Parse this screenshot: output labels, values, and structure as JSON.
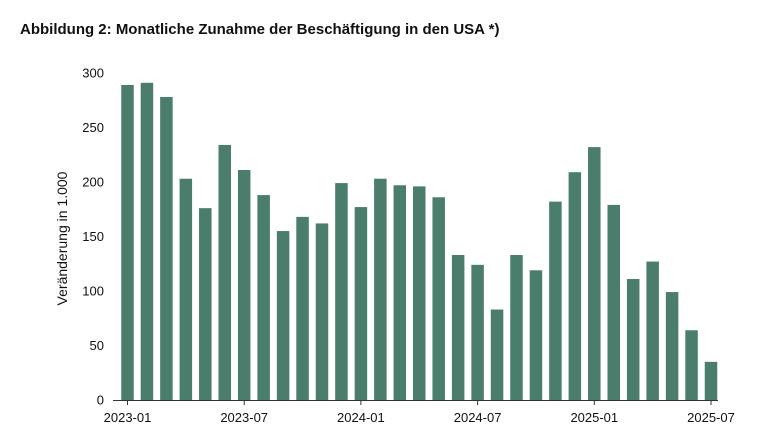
{
  "chart_data": {
    "type": "bar",
    "title": "Abbildung 2: Monatliche Zunahme der Beschäftigung in den USA *)",
    "xlabel": "",
    "ylabel": "Veränderung in 1.000",
    "ylim": [
      0,
      300
    ],
    "yticks": [
      0,
      50,
      100,
      150,
      200,
      250,
      300
    ],
    "grid": false,
    "legend": "none",
    "bar_color": "#4a7d6b",
    "categories": [
      "2023-01",
      "2023-02",
      "2023-03",
      "2023-04",
      "2023-05",
      "2023-06",
      "2023-07",
      "2023-08",
      "2023-09",
      "2023-10",
      "2023-11",
      "2023-12",
      "2024-01",
      "2024-02",
      "2024-03",
      "2024-04",
      "2024-05",
      "2024-06",
      "2024-07",
      "2024-08",
      "2024-09",
      "2024-10",
      "2024-11",
      "2024-12",
      "2025-01",
      "2025-02",
      "2025-03",
      "2025-04",
      "2025-05",
      "2025-06",
      "2025-07"
    ],
    "xtick_labels": [
      "2023-01",
      "2023-07",
      "2024-01",
      "2024-07",
      "2025-01",
      "2025-07"
    ],
    "values": [
      289,
      291,
      278,
      203,
      176,
      234,
      211,
      188,
      155,
      168,
      162,
      199,
      177,
      203,
      197,
      196,
      186,
      133,
      124,
      83,
      133,
      119,
      182,
      209,
      232,
      179,
      111,
      127,
      99,
      64,
      35
    ]
  }
}
